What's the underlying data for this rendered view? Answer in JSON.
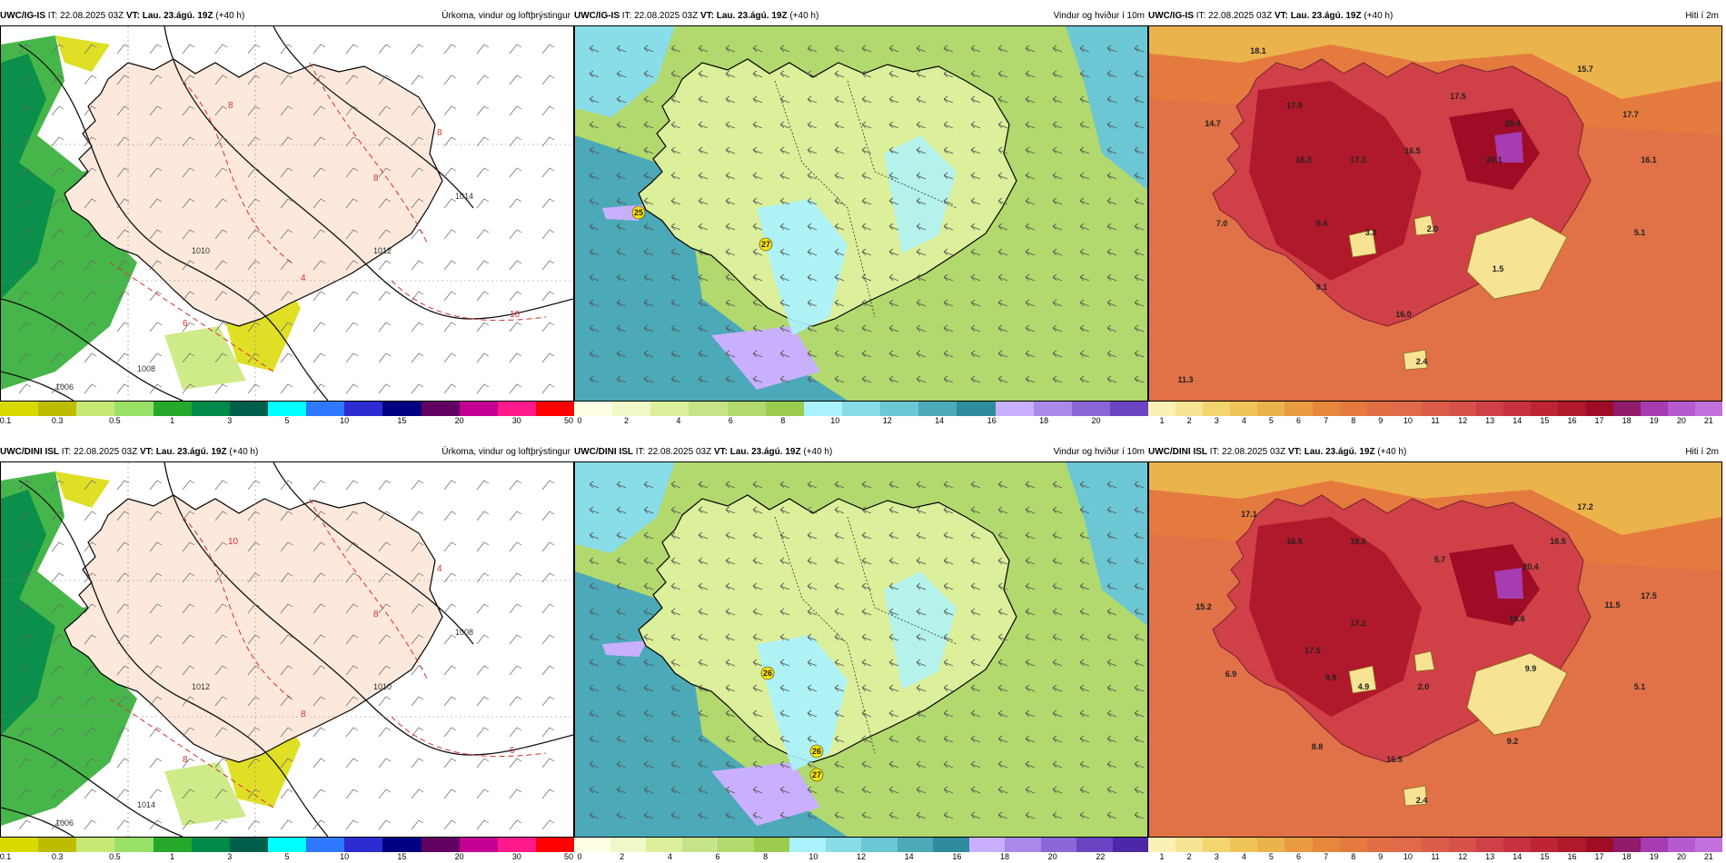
{
  "common": {
    "issue_time": "IT: 22.08.2025 03Z",
    "valid_label": "VT:",
    "valid_time": "Lau. 23.ágú. 19Z",
    "lead": "(+40 h)"
  },
  "rows": [
    {
      "model": "UWC/IG-IS",
      "panels": [
        {
          "title": "Úrkoma, vindur og loftþrýstingur",
          "type": "precip",
          "ticks": [
            "0.1",
            "0.3",
            "0.5",
            "1",
            "3",
            "5",
            "10",
            "15",
            "20",
            "30",
            "50"
          ],
          "colors": [
            "#d9d900",
            "#bdbd00",
            "#c7e874",
            "#99e066",
            "#26a82a",
            "#00894a",
            "#005e4a",
            "#00ffff",
            "#2f79ff",
            "#2c2cd0",
            "#000080",
            "#600060",
            "#c40093",
            "#ff1a8c",
            "#ff0000"
          ],
          "isobars": [
            "1010",
            "1012",
            "1014",
            "1008",
            "1006"
          ],
          "temps": [
            "8",
            "8",
            "6",
            "10",
            "8",
            "4"
          ]
        },
        {
          "title": "Vindur og hviður í 10m",
          "type": "wind",
          "ticks": [
            "0",
            "2",
            "4",
            "6",
            "8",
            "10",
            "12",
            "14",
            "16",
            "18",
            "20"
          ],
          "colors": [
            "#ffffe6",
            "#f0f8c8",
            "#dcef9b",
            "#c7e38a",
            "#b2d96e",
            "#9ccc4f",
            "#aaf2ff",
            "#88dde8",
            "#6cc7d4",
            "#4ba9b8",
            "#2e8c9c",
            "#c9b0ff",
            "#a98ae8",
            "#8a66d6",
            "#6b44c4"
          ],
          "gusts": [
            "25",
            "27"
          ]
        },
        {
          "title": "Hiti í 2m",
          "type": "temp",
          "ticks": [
            "1",
            "2",
            "3",
            "4",
            "5",
            "6",
            "7",
            "8",
            "9",
            "10",
            "11",
            "12",
            "13",
            "14",
            "15",
            "16",
            "17",
            "18",
            "19",
            "20",
            "21"
          ],
          "colors": [
            "#fbf0b5",
            "#f6e393",
            "#f2d56f",
            "#efc55a",
            "#ebb34c",
            "#e99b42",
            "#e7873c",
            "#e47a3e",
            "#e06d44",
            "#df6a4c",
            "#dc5d4a",
            "#d7504a",
            "#cf4047",
            "#c8323e",
            "#be2434",
            "#b0182c",
            "#9e0c26",
            "#901b6a",
            "#a63cb0",
            "#b65ad0",
            "#c270dc"
          ],
          "labels": [
            "18.1",
            "15.7",
            "14.7",
            "17.9",
            "17.5",
            "17.7",
            "16.3",
            "17.3",
            "16.5",
            "20.4",
            "20.1",
            "16.1",
            "7.0",
            "9.4",
            "3.3",
            "2.0",
            "5.1",
            "1.5",
            "9.1",
            "16.0",
            "2.4",
            "11.3"
          ]
        }
      ]
    },
    {
      "model": "UWC/DINI ISL",
      "panels": [
        {
          "title": "Úrkoma, vindur og loftþrýstingur",
          "type": "precip",
          "ticks": [
            "0.1",
            "0.3",
            "0.5",
            "1",
            "3",
            "5",
            "10",
            "15",
            "20",
            "30",
            "50"
          ],
          "colors": [
            "#d9d900",
            "#bdbd00",
            "#c7e874",
            "#99e066",
            "#26a82a",
            "#00894a",
            "#005e4a",
            "#00ffff",
            "#2f79ff",
            "#2c2cd0",
            "#000080",
            "#600060",
            "#c40093",
            "#ff1a8c",
            "#ff0000"
          ],
          "isobars": [
            "1012",
            "1010",
            "1008",
            "1014",
            "1006"
          ],
          "temps": [
            "10",
            "8",
            "8",
            "6",
            "4",
            "8"
          ]
        },
        {
          "title": "Vindur og hviður í 10m",
          "type": "wind",
          "ticks": [
            "0",
            "2",
            "4",
            "6",
            "8",
            "10",
            "12",
            "14",
            "16",
            "18",
            "20",
            "22"
          ],
          "colors": [
            "#ffffe6",
            "#f0f8c8",
            "#dcef9b",
            "#c7e38a",
            "#b2d96e",
            "#9ccc4f",
            "#aaf2ff",
            "#88dde8",
            "#6cc7d4",
            "#4ba9b8",
            "#2e8c9c",
            "#c9b0ff",
            "#a98ae8",
            "#8a66d6",
            "#6b44c4",
            "#4a28a8"
          ],
          "gusts": [
            "26",
            "26",
            "27"
          ]
        },
        {
          "title": "Hiti í 2m",
          "type": "temp",
          "ticks": [
            "1",
            "2",
            "3",
            "4",
            "5",
            "6",
            "7",
            "8",
            "9",
            "10",
            "11",
            "12",
            "13",
            "14",
            "15",
            "16",
            "17",
            "18",
            "19",
            "20",
            "21"
          ],
          "colors": [
            "#fbf0b5",
            "#f6e393",
            "#f2d56f",
            "#efc55a",
            "#ebb34c",
            "#e99b42",
            "#e7873c",
            "#e47a3e",
            "#e06d44",
            "#df6a4c",
            "#dc5d4a",
            "#d7504a",
            "#cf4047",
            "#c8323e",
            "#be2434",
            "#b0182c",
            "#9e0c26",
            "#901b6a",
            "#a63cb0",
            "#b65ad0",
            "#c270dc"
          ],
          "labels": [
            "17.1",
            "17.2",
            "16.5",
            "18.0",
            "5.7",
            "16.5",
            "20.4",
            "15.2",
            "17.5",
            "17.2",
            "18.6",
            "11.5",
            "17.5",
            "9.9",
            "6.9",
            "9.9",
            "4.9",
            "2.0",
            "5.1",
            "8.8",
            "9.2",
            "16.5",
            "2.4"
          ]
        }
      ]
    }
  ]
}
